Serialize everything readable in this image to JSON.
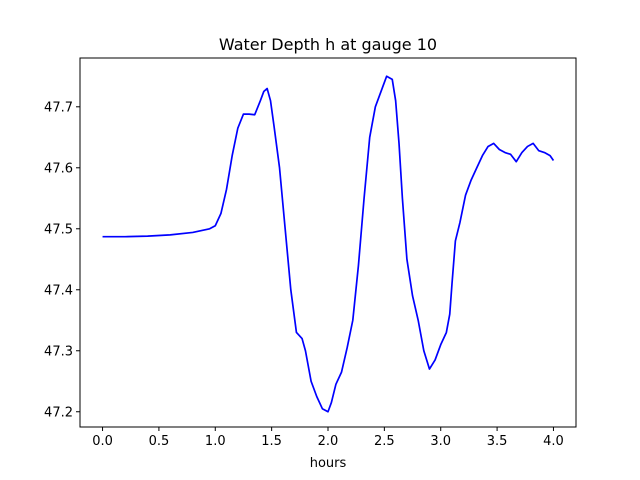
{
  "chart_data": {
    "type": "line",
    "title": "Water Depth h at gauge 10",
    "xlabel": "hours",
    "ylabel": "",
    "xlim": [
      -0.2,
      4.2
    ],
    "ylim": [
      47.175,
      47.78
    ],
    "grid": false,
    "legend": "none",
    "xticks": [
      0.0,
      0.5,
      1.0,
      1.5,
      2.0,
      2.5,
      3.0,
      3.5,
      4.0
    ],
    "xtick_labels": [
      "0.0",
      "0.5",
      "1.0",
      "1.5",
      "2.0",
      "2.5",
      "3.0",
      "3.5",
      "4.0"
    ],
    "yticks": [
      47.2,
      47.3,
      47.4,
      47.5,
      47.6,
      47.7
    ],
    "ytick_labels": [
      "47.2",
      "47.3",
      "47.4",
      "47.5",
      "47.6",
      "47.7"
    ],
    "series": [
      {
        "color": "#0000ff",
        "x": [
          0.0,
          0.2,
          0.4,
          0.6,
          0.8,
          0.95,
          1.0,
          1.05,
          1.1,
          1.15,
          1.2,
          1.25,
          1.3,
          1.35,
          1.4,
          1.43,
          1.46,
          1.49,
          1.52,
          1.57,
          1.62,
          1.67,
          1.72,
          1.77,
          1.8,
          1.85,
          1.9,
          1.95,
          2.0,
          2.03,
          2.07,
          2.12,
          2.17,
          2.22,
          2.27,
          2.32,
          2.37,
          2.42,
          2.47,
          2.52,
          2.57,
          2.6,
          2.63,
          2.66,
          2.7,
          2.75,
          2.8,
          2.85,
          2.9,
          2.95,
          3.0,
          3.05,
          3.08,
          3.1,
          3.13,
          3.17,
          3.22,
          3.27,
          3.32,
          3.37,
          3.42,
          3.47,
          3.52,
          3.57,
          3.62,
          3.67,
          3.72,
          3.77,
          3.82,
          3.87,
          3.92,
          3.97,
          4.0
        ],
        "y": [
          47.487,
          47.487,
          47.488,
          47.49,
          47.494,
          47.5,
          47.505,
          47.525,
          47.565,
          47.62,
          47.665,
          47.688,
          47.688,
          47.687,
          47.71,
          47.725,
          47.73,
          47.71,
          47.67,
          47.6,
          47.5,
          47.4,
          47.33,
          47.32,
          47.3,
          47.25,
          47.225,
          47.205,
          47.2,
          47.215,
          47.245,
          47.265,
          47.305,
          47.35,
          47.44,
          47.55,
          47.65,
          47.7,
          47.725,
          47.75,
          47.745,
          47.71,
          47.64,
          47.55,
          47.45,
          47.39,
          47.35,
          47.3,
          47.27,
          47.285,
          47.31,
          47.33,
          47.36,
          47.41,
          47.48,
          47.51,
          47.555,
          47.58,
          47.6,
          47.62,
          47.635,
          47.64,
          47.63,
          47.625,
          47.622,
          47.61,
          47.625,
          47.635,
          47.64,
          47.628,
          47.625,
          47.62,
          47.612
        ]
      }
    ]
  }
}
